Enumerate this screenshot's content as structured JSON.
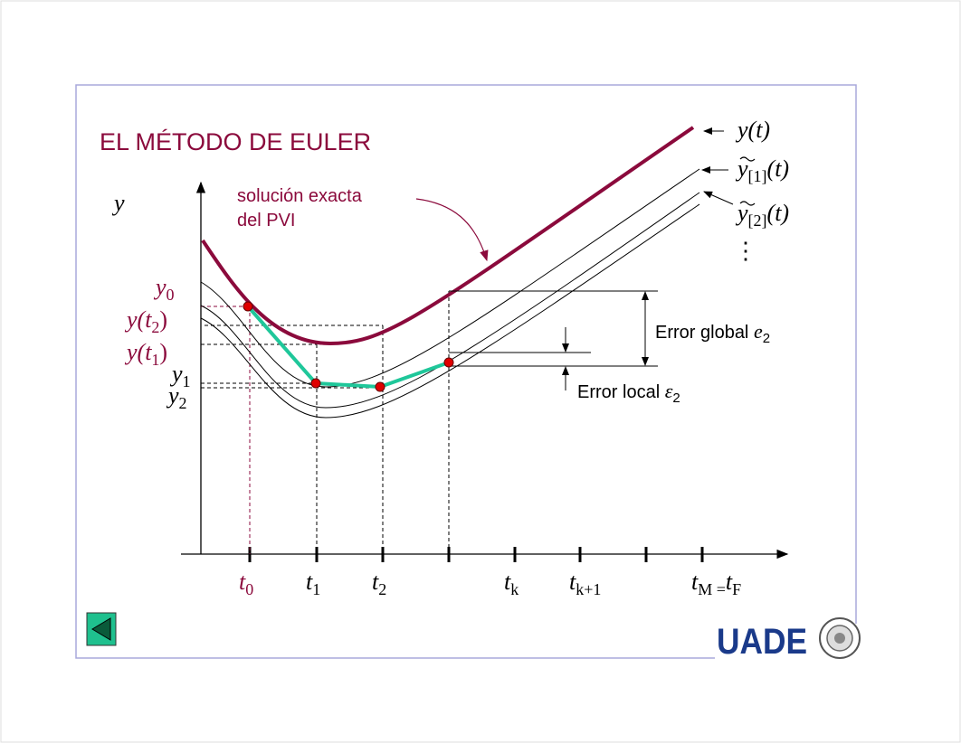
{
  "slide": {
    "title": "EL MÉTODO DE EULER",
    "annotation": [
      "solución exacta",
      "del PVI"
    ],
    "title_color": "#8b0a3c"
  },
  "diagram": {
    "y_axis_label": "y",
    "y_labels": {
      "y0": "y",
      "y0_sub": "0",
      "yt2": "y(t",
      "yt2_sub": "2",
      "yt2_close": ")",
      "yt1": "y(t",
      "yt1_sub": "1",
      "yt1_close": ")",
      "y1": "y",
      "y1_sub": "1",
      "y2": "y",
      "y2_sub": "2"
    },
    "t_labels": [
      {
        "main": "t",
        "sub": "0"
      },
      {
        "main": "t",
        "sub": "1"
      },
      {
        "main": "t",
        "sub": "2"
      },
      {
        "main": "t",
        "sub": "k"
      },
      {
        "main": "t",
        "sub": "k+1"
      },
      {
        "main": "t",
        "sub": "M =",
        "main2": "t",
        "sub2": "F"
      }
    ],
    "curve_labels": {
      "exact": "y(t)",
      "approx1_main": "y",
      "approx1_sub": "[1]",
      "approx1_arg": "(t)",
      "approx2_main": "y",
      "approx2_sub": "[2]",
      "approx2_arg": "(t)",
      "more": "⋮"
    },
    "error_global": {
      "text": "Error global ",
      "sym": "e",
      "sub": "2"
    },
    "error_local": {
      "text": "Error local ",
      "sym": "ε",
      "sub": "2"
    },
    "colors": {
      "exact": "#8b0a3c",
      "euler": "#1fc79a",
      "points": "#e00000",
      "frame": "#a8a8dc"
    }
  },
  "nav": {
    "back_icon": "triangle-left-icon",
    "button_color": "#1fc08e"
  },
  "logo": {
    "text": "UADE",
    "color": "#1a3a8a"
  }
}
